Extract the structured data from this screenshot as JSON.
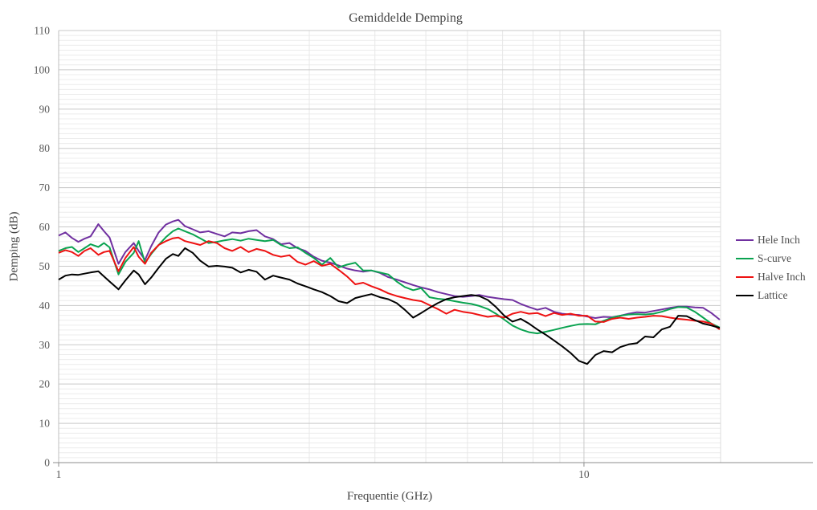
{
  "chart_data": {
    "type": "line",
    "title": "Gemiddelde Demping",
    "xlabel": "Frequentie (GHz)",
    "ylabel": "Demping (dB)",
    "x_scale": "log",
    "xlim": [
      1,
      18.2
    ],
    "ylim": [
      0,
      110
    ],
    "x_ticks": [
      1,
      10
    ],
    "x_minor_gridlines": [
      2,
      3,
      4,
      5,
      6,
      7,
      8,
      9
    ],
    "y_ticks": [
      0,
      10,
      20,
      30,
      40,
      50,
      60,
      70,
      80,
      90,
      100,
      110
    ],
    "y_minor_step": 1.25,
    "grid": true,
    "legend_position": "right",
    "colors": {
      "text": "#595959",
      "title_text": "#454545",
      "grid_major": "#c9c9c9",
      "grid_minor": "#ececec",
      "axis_line": "#8c8c8c",
      "left_axis_line": "#bfbfbf"
    },
    "x": [
      1.0,
      1.03,
      1.06,
      1.09,
      1.12,
      1.15,
      1.19,
      1.22,
      1.25,
      1.3,
      1.34,
      1.39,
      1.42,
      1.46,
      1.5,
      1.55,
      1.6,
      1.65,
      1.69,
      1.74,
      1.8,
      1.86,
      1.93,
      2.0,
      2.07,
      2.14,
      2.22,
      2.3,
      2.38,
      2.47,
      2.56,
      2.65,
      2.75,
      2.85,
      2.95,
      3.06,
      3.17,
      3.29,
      3.41,
      3.54,
      3.67,
      3.8,
      3.94,
      4.09,
      4.24,
      4.4,
      4.56,
      4.73,
      4.9,
      5.08,
      5.27,
      5.47,
      5.67,
      5.88,
      6.1,
      6.32,
      6.56,
      6.8,
      7.05,
      7.31,
      7.58,
      7.86,
      8.15,
      8.45,
      8.77,
      9.09,
      9.43,
      9.78,
      10.14,
      10.51,
      10.9,
      11.31,
      11.72,
      12.16,
      12.61,
      13.07,
      13.56,
      14.06,
      14.58,
      15.12,
      15.68,
      16.26,
      16.86,
      17.48,
      18.13
    ],
    "series": [
      {
        "name": "Hele Inch",
        "color": "#7030A0",
        "values": [
          57.8,
          58.6,
          57.2,
          56.2,
          57.0,
          57.6,
          60.7,
          58.9,
          57.3,
          50.6,
          53.6,
          55.9,
          53.9,
          51.6,
          55.1,
          58.6,
          60.6,
          61.4,
          61.8,
          60.2,
          59.4,
          58.6,
          58.9,
          58.2,
          57.6,
          58.6,
          58.4,
          58.9,
          59.2,
          57.6,
          56.9,
          55.6,
          55.9,
          54.6,
          53.9,
          52.4,
          51.4,
          50.9,
          50.2,
          49.4,
          48.9,
          48.6,
          48.9,
          48.3,
          47.2,
          46.6,
          45.9,
          45.2,
          44.6,
          44.1,
          43.4,
          42.9,
          42.4,
          42.2,
          42.4,
          42.7,
          42.2,
          41.9,
          41.6,
          41.4,
          40.4,
          39.6,
          38.9,
          39.4,
          38.4,
          37.9,
          37.7,
          37.6,
          37.2,
          36.8,
          37.1,
          37.0,
          37.4,
          37.9,
          38.3,
          38.2,
          38.6,
          39.0,
          39.4,
          39.7,
          39.7,
          39.5,
          39.4,
          38.1,
          36.4
        ]
      },
      {
        "name": "S-curve",
        "color": "#0aa350",
        "values": [
          53.9,
          54.6,
          54.9,
          53.6,
          54.6,
          55.6,
          54.9,
          55.9,
          54.8,
          47.9,
          51.1,
          53.4,
          56.4,
          50.9,
          53.1,
          55.4,
          57.4,
          58.9,
          59.6,
          58.9,
          58.1,
          57.1,
          55.9,
          56.2,
          56.6,
          56.9,
          56.5,
          57.0,
          56.7,
          56.4,
          56.7,
          55.4,
          54.6,
          54.8,
          53.4,
          52.1,
          50.4,
          52.1,
          49.7,
          50.4,
          50.9,
          48.9,
          48.9,
          48.4,
          47.9,
          46.1,
          44.7,
          43.9,
          44.4,
          42.1,
          41.7,
          41.5,
          41.1,
          40.7,
          40.4,
          39.9,
          39.1,
          37.9,
          36.4,
          34.9,
          33.9,
          33.2,
          32.9,
          33.3,
          33.8,
          34.3,
          34.8,
          35.2,
          35.3,
          35.2,
          36.1,
          36.9,
          37.4,
          37.7,
          37.8,
          37.7,
          37.9,
          38.4,
          39.1,
          39.6,
          39.5,
          38.4,
          36.9,
          35.4,
          34.4
        ]
      },
      {
        "name": "Halve Inch",
        "color": "#ee1111",
        "values": [
          53.4,
          54.1,
          53.6,
          52.6,
          53.9,
          54.6,
          52.9,
          53.6,
          53.9,
          48.7,
          52.1,
          54.9,
          52.4,
          50.6,
          53.4,
          55.4,
          56.4,
          57.1,
          57.3,
          56.4,
          55.9,
          55.4,
          56.4,
          55.9,
          54.6,
          53.9,
          54.9,
          53.6,
          54.4,
          53.9,
          52.9,
          52.4,
          52.8,
          51.1,
          50.4,
          51.3,
          50.1,
          50.6,
          49.1,
          47.4,
          45.4,
          45.8,
          44.9,
          44.1,
          43.1,
          42.4,
          41.9,
          41.4,
          41.1,
          40.1,
          39.1,
          37.9,
          38.9,
          38.4,
          38.1,
          37.6,
          37.1,
          37.4,
          36.9,
          37.9,
          38.4,
          37.9,
          38.1,
          37.3,
          38.1,
          37.6,
          37.9,
          37.4,
          37.4,
          35.9,
          35.8,
          36.6,
          36.9,
          36.6,
          36.9,
          37.1,
          37.4,
          37.3,
          36.9,
          36.6,
          36.4,
          36.1,
          35.9,
          35.4,
          33.9
        ]
      },
      {
        "name": "Lattice",
        "color": "#000000",
        "values": [
          46.6,
          47.6,
          47.9,
          47.8,
          48.1,
          48.4,
          48.7,
          47.4,
          46.1,
          44.1,
          46.4,
          48.9,
          47.9,
          45.4,
          47.1,
          49.6,
          51.9,
          53.1,
          52.6,
          54.6,
          53.4,
          51.4,
          49.9,
          50.1,
          49.9,
          49.6,
          48.4,
          49.1,
          48.6,
          46.6,
          47.6,
          47.1,
          46.6,
          45.6,
          44.9,
          44.1,
          43.4,
          42.4,
          41.1,
          40.6,
          41.9,
          42.4,
          42.9,
          42.1,
          41.6,
          40.6,
          38.9,
          36.9,
          38.1,
          39.4,
          40.6,
          41.6,
          42.1,
          42.4,
          42.7,
          42.4,
          41.4,
          39.6,
          37.4,
          35.9,
          36.6,
          35.4,
          33.9,
          32.6,
          31.1,
          29.6,
          27.9,
          25.9,
          25.1,
          27.4,
          28.4,
          28.1,
          29.4,
          30.1,
          30.4,
          32.1,
          31.9,
          33.9,
          34.6,
          37.4,
          37.3,
          36.3,
          35.4,
          34.9,
          34.3
        ]
      }
    ]
  }
}
